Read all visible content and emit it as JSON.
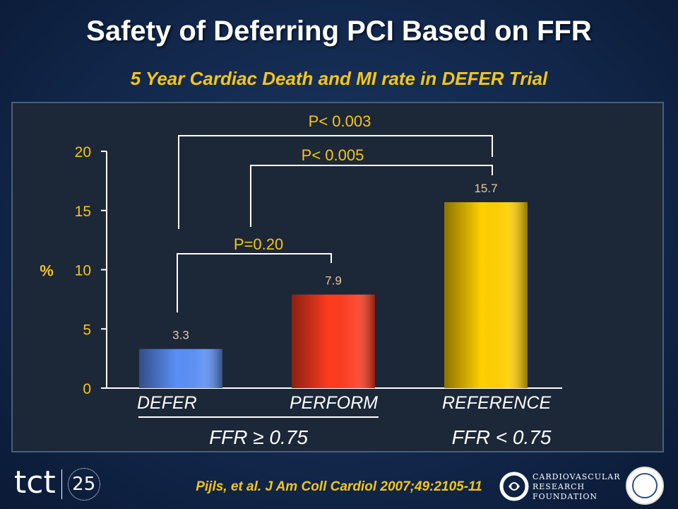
{
  "slide": {
    "title": "Safety of Deferring PCI Based on FFR",
    "subtitle": "5 Year Cardiac Death and MI rate in DEFER Trial",
    "citation": "Pijls, et al. J Am Coll Cardiol 2007;49:2105-11"
  },
  "logos": {
    "tct_text": "tct",
    "tct_number": "25",
    "crf_text": [
      "CARDIOVASCULAR",
      "RESEARCH",
      "FOUNDATION"
    ]
  },
  "chart_data": {
    "type": "bar",
    "title": "",
    "ylabel": "%",
    "ylim": [
      0,
      20
    ],
    "yticks": [
      0,
      5,
      10,
      15,
      20
    ],
    "categories": [
      "DEFER",
      "PERFORM",
      "REFERENCE"
    ],
    "values": [
      3.3,
      7.9,
      15.7
    ],
    "value_labels": [
      "3.3",
      "7.9",
      "15.7"
    ],
    "bar_colors": [
      "#5b8ff5",
      "#ff3b1f",
      "#ffd000"
    ],
    "groups": [
      {
        "label": "FFR ≥ 0.75",
        "categories": [
          "DEFER",
          "PERFORM"
        ]
      },
      {
        "label": "FFR < 0.75",
        "categories": [
          "REFERENCE"
        ]
      }
    ],
    "comparisons": [
      {
        "from": "DEFER",
        "to": "PERFORM",
        "label": "P=0.20"
      },
      {
        "from": "PERFORM",
        "to": "REFERENCE",
        "label": "P< 0.005"
      },
      {
        "from": "DEFER",
        "to": "REFERENCE",
        "label": "P< 0.003"
      }
    ],
    "grid": false,
    "legend": "none"
  },
  "colors": {
    "accent": "#f5c518",
    "text": "#ffffff",
    "value_label": "#e8c9a0",
    "panel": "#1c2738"
  }
}
